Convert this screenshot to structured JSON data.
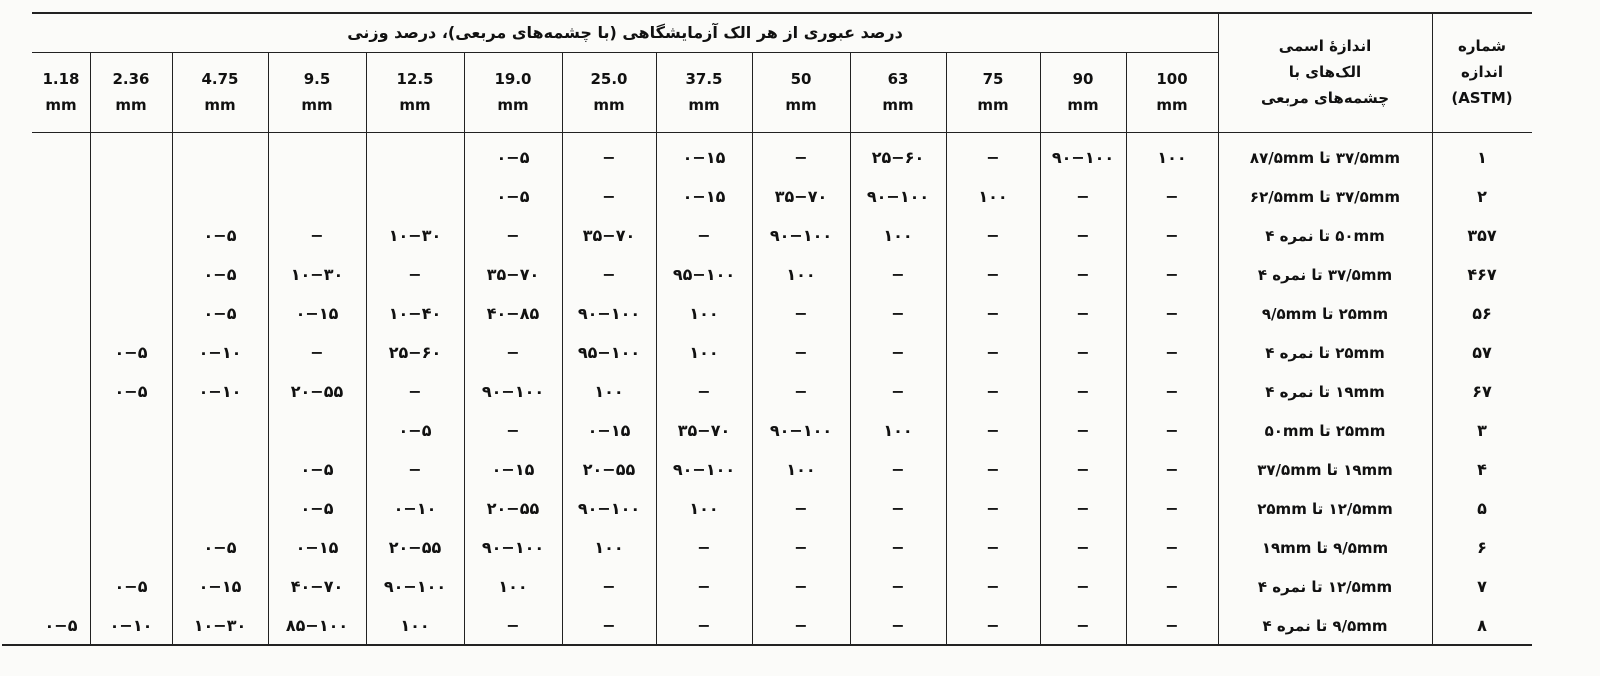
{
  "header": {
    "group_title": "درصد عبوری از هر الک آزمایشگاهی (با چشمه‌های مربعی)، درصد وزنی",
    "nominal_size": [
      "اندازهٔ اسمی",
      "الک‌های با",
      "چشمه‌های مربعی"
    ],
    "size_number": [
      "شماره",
      "اندازه",
      "(ASTM)"
    ],
    "sieves": [
      {
        "value": "100",
        "unit": "mm"
      },
      {
        "value": "90",
        "unit": "mm"
      },
      {
        "value": "75",
        "unit": "mm"
      },
      {
        "value": "63",
        "unit": "mm"
      },
      {
        "value": "50",
        "unit": "mm"
      },
      {
        "value": "37.5",
        "unit": "mm"
      },
      {
        "value": "25.0",
        "unit": "mm"
      },
      {
        "value": "19.0",
        "unit": "mm"
      },
      {
        "value": "12.5",
        "unit": "mm"
      },
      {
        "value": "9.5",
        "unit": "mm"
      },
      {
        "value": "4.75",
        "unit": "mm"
      },
      {
        "value": "2.36",
        "unit": "mm"
      },
      {
        "value": "1.18",
        "unit": "mm"
      }
    ]
  },
  "rows": [
    {
      "num": "۱",
      "size": "۳۷/۵mm تا ۸۷/۵mm",
      "vals": [
        "۱۰۰",
        "۹۰−۱۰۰",
        "−",
        "۲۵−۶۰",
        "−",
        "۰−۱۵",
        "−",
        "۰−۵",
        "",
        "",
        "",
        "",
        ""
      ]
    },
    {
      "num": "۲",
      "size": "۳۷/۵mm تا ۶۲/۵mm",
      "vals": [
        "−",
        "−",
        "۱۰۰",
        "۹۰−۱۰۰",
        "۳۵−۷۰",
        "۰−۱۵",
        "−",
        "۰−۵",
        "",
        "",
        "",
        "",
        ""
      ]
    },
    {
      "num": "۳۵۷",
      "size": "۵۰mm تا نمره ۴",
      "vals": [
        "−",
        "−",
        "−",
        "۱۰۰",
        "۹۰−۱۰۰",
        "−",
        "۳۵−۷۰",
        "−",
        "۱۰−۳۰",
        "−",
        "۰−۵",
        "",
        ""
      ]
    },
    {
      "num": "۴۶۷",
      "size": "۳۷/۵mm تا نمره ۴",
      "vals": [
        "−",
        "−",
        "−",
        "−",
        "۱۰۰",
        "۹۵−۱۰۰",
        "−",
        "۳۵−۷۰",
        "−",
        "۱۰−۳۰",
        "۰−۵",
        "",
        ""
      ]
    },
    {
      "num": "۵۶",
      "size": "۲۵mm تا ۹/۵mm",
      "vals": [
        "−",
        "−",
        "−",
        "−",
        "−",
        "۱۰۰",
        "۹۰−۱۰۰",
        "۴۰−۸۵",
        "۱۰−۴۰",
        "۰−۱۵",
        "۰−۵",
        "",
        ""
      ]
    },
    {
      "num": "۵۷",
      "size": "۲۵mm تا نمره ۴",
      "vals": [
        "−",
        "−",
        "−",
        "−",
        "−",
        "۱۰۰",
        "۹۵−۱۰۰",
        "−",
        "۲۵−۶۰",
        "−",
        "۰−۱۰",
        "۰−۵",
        ""
      ]
    },
    {
      "num": "۶۷",
      "size": "۱۹mm تا نمره ۴",
      "vals": [
        "−",
        "−",
        "−",
        "−",
        "−",
        "−",
        "۱۰۰",
        "۹۰−۱۰۰",
        "−",
        "۲۰−۵۵",
        "۰−۱۰",
        "۰−۵",
        ""
      ]
    },
    {
      "num": "۳",
      "size": "۲۵mm تا ۵۰mm",
      "vals": [
        "−",
        "−",
        "−",
        "۱۰۰",
        "۹۰−۱۰۰",
        "۳۵−۷۰",
        "۰−۱۵",
        "−",
        "۰−۵",
        "",
        "",
        "",
        ""
      ]
    },
    {
      "num": "۴",
      "size": "۱۹mm تا ۳۷/۵mm",
      "vals": [
        "−",
        "−",
        "−",
        "−",
        "۱۰۰",
        "۹۰−۱۰۰",
        "۲۰−۵۵",
        "۰−۱۵",
        "−",
        "۰−۵",
        "",
        "",
        ""
      ]
    },
    {
      "num": "۵",
      "size": "۱۲/۵mm تا ۲۵mm",
      "vals": [
        "−",
        "−",
        "−",
        "−",
        "−",
        "۱۰۰",
        "۹۰−۱۰۰",
        "۲۰−۵۵",
        "۰−۱۰",
        "۰−۵",
        "",
        "",
        ""
      ]
    },
    {
      "num": "۶",
      "size": "۹/۵mm تا ۱۹mm",
      "vals": [
        "−",
        "−",
        "−",
        "−",
        "−",
        "−",
        "۱۰۰",
        "۹۰−۱۰۰",
        "۲۰−۵۵",
        "۰−۱۵",
        "۰−۵",
        "",
        ""
      ]
    },
    {
      "num": "۷",
      "size": "۱۲/۵mm تا نمره ۴",
      "vals": [
        "−",
        "−",
        "−",
        "−",
        "−",
        "−",
        "−",
        "۱۰۰",
        "۹۰−۱۰۰",
        "۴۰−۷۰",
        "۰−۱۵",
        "۰−۵",
        ""
      ]
    },
    {
      "num": "۸",
      "size": "۹/۵mm تا نمره ۴",
      "vals": [
        "−",
        "−",
        "−",
        "−",
        "−",
        "−",
        "−",
        "−",
        "۱۰۰",
        "۸۵−۱۰۰",
        "۱۰−۳۰",
        "۰−۱۰",
        "۰−۵"
      ]
    }
  ]
}
